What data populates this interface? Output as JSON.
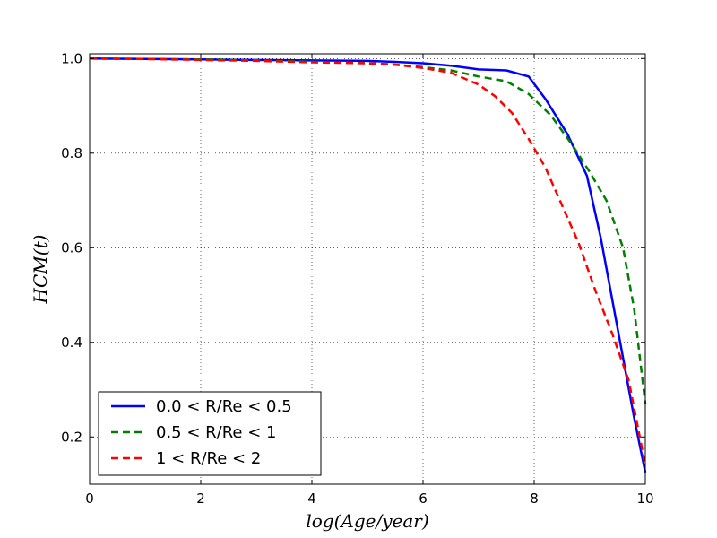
{
  "chart_data": {
    "type": "line",
    "title": "",
    "xlabel": "log(Age/year)",
    "ylabel": "HCM(t)",
    "xlim": [
      0,
      10
    ],
    "ylim": [
      0.1,
      1.01
    ],
    "xticks": [
      0,
      2,
      4,
      6,
      8,
      10
    ],
    "yticks": [
      0.2,
      0.4,
      0.6,
      0.8,
      1.0
    ],
    "xtick_labels": [
      "0",
      "2",
      "4",
      "6",
      "8",
      "10"
    ],
    "ytick_labels": [
      "0.2",
      "0.4",
      "0.6",
      "0.8",
      "1.0"
    ],
    "grid": true,
    "legend_position": "lower-left",
    "series": [
      {
        "name": "0.0 < R/Re < 0.5",
        "color": "#0000ff",
        "dash": "solid",
        "x": [
          0,
          1,
          2,
          3,
          4,
          5,
          5.5,
          6,
          6.5,
          7,
          7.5,
          7.9,
          8.2,
          8.6,
          8.95,
          9.2,
          9.5,
          9.8,
          10
        ],
        "y": [
          1.0,
          0.999,
          0.998,
          0.997,
          0.996,
          0.995,
          0.993,
          0.99,
          0.985,
          0.977,
          0.975,
          0.962,
          0.915,
          0.84,
          0.752,
          0.62,
          0.43,
          0.24,
          0.125
        ]
      },
      {
        "name": "0.5 < R/Re < 1",
        "color": "#008000",
        "dash": "dashed",
        "x": [
          0,
          1,
          2,
          3,
          4,
          5,
          5.5,
          6,
          6.5,
          7,
          7.5,
          7.9,
          8.3,
          8.7,
          9.0,
          9.3,
          9.6,
          9.8,
          10
        ],
        "y": [
          1.0,
          0.999,
          0.998,
          0.996,
          0.993,
          0.99,
          0.987,
          0.982,
          0.975,
          0.962,
          0.952,
          0.925,
          0.88,
          0.815,
          0.76,
          0.7,
          0.6,
          0.47,
          0.27
        ]
      },
      {
        "name": "1 < R/Re < 2",
        "color": "#ff0000",
        "dash": "dashed",
        "x": [
          0,
          1,
          2,
          3,
          4,
          5,
          5.5,
          6,
          6.5,
          7,
          7.3,
          7.6,
          7.9,
          8.2,
          8.5,
          8.8,
          9.1,
          9.4,
          9.7,
          10
        ],
        "y": [
          1.0,
          0.999,
          0.997,
          0.995,
          0.992,
          0.99,
          0.987,
          0.98,
          0.97,
          0.945,
          0.92,
          0.885,
          0.83,
          0.77,
          0.69,
          0.61,
          0.51,
          0.42,
          0.32,
          0.14
        ]
      }
    ]
  }
}
